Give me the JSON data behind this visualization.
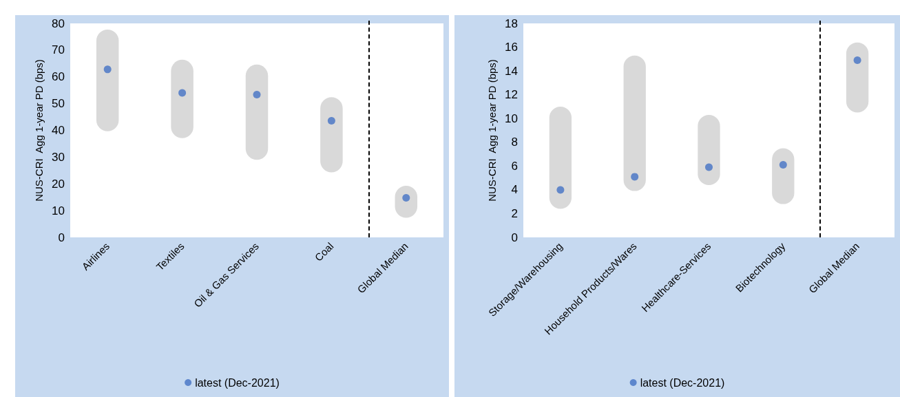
{
  "chart_data": [
    {
      "type": "bar",
      "ylabel": "NUS-CRI  Agg 1-year PD (bps)",
      "categories": [
        "Airlines",
        "Textiles",
        "Oil & Gas Services",
        "Coal",
        "Global Median"
      ],
      "series": [
        {
          "color": "#d9d9d9",
          "base": [
            39.7,
            37.1,
            29.0,
            24.3,
            7.3
          ],
          "values": [
            38.0,
            29.3,
            35.6,
            28.1,
            12.0
          ]
        },
        {
          "type": "scatter",
          "name": "latest (Dec-2021)",
          "color": "#4472c4",
          "x": [
            "Airlines",
            "Textiles",
            "Oil & Gas Services",
            "Coal",
            "Global Median"
          ],
          "values": [
            62.8,
            54.0,
            53.4,
            43.6,
            14.8
          ]
        }
      ],
      "ylim": [
        0,
        80
      ],
      "yticks": [
        0,
        10,
        20,
        30,
        40,
        50,
        60,
        70,
        80
      ],
      "grid": false,
      "legend": "bottom",
      "marker": "circle"
    },
    {
      "type": "bar",
      "ylabel": "NUS-CRI  Agg 1-year PD (bps)",
      "categories": [
        "Storage/Warehousing",
        "Household Products/Wares",
        "Healthcare-Services",
        "Biotechnology",
        "Global Median"
      ],
      "series": [
        {
          "color": "#d9d9d9",
          "base": [
            2.4,
            3.9,
            4.4,
            2.8,
            10.5
          ],
          "values": [
            8.6,
            11.4,
            5.9,
            4.7,
            5.9
          ]
        },
        {
          "type": "scatter",
          "name": "latest (Dec-2021)",
          "color": "#4472c4",
          "x": [
            "Storage/Warehousing",
            "Household Products/Wares",
            "Healthcare-Services",
            "Biotechnology",
            "Global Median"
          ],
          "values": [
            4.0,
            5.1,
            5.9,
            6.1,
            14.9
          ]
        }
      ],
      "ylim": [
        0,
        18
      ],
      "yticks": [
        0,
        2,
        4,
        6,
        8,
        10,
        12,
        14,
        16,
        18
      ],
      "grid": false,
      "legend": "bottom",
      "marker": "circle"
    }
  ]
}
